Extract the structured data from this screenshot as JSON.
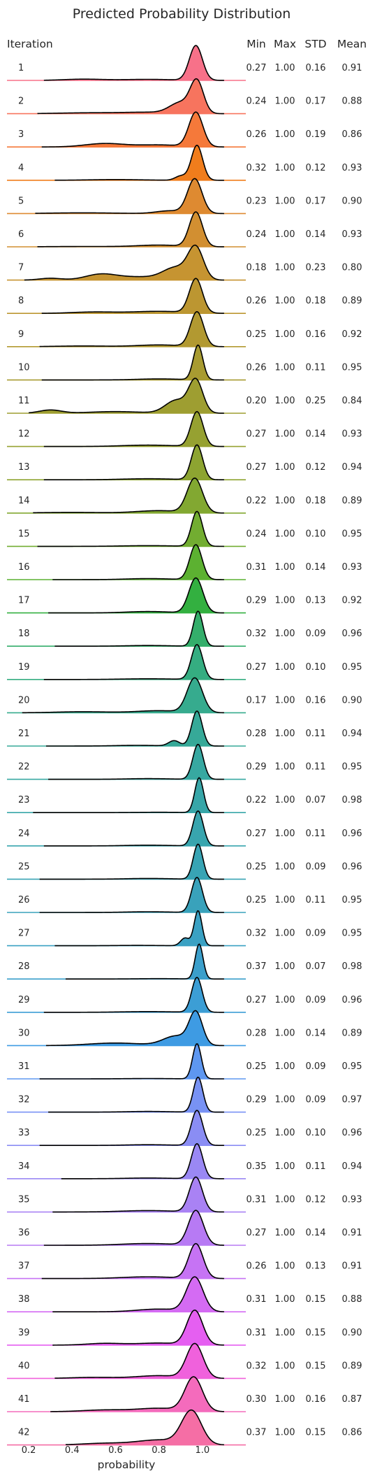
{
  "chart_data": {
    "type": "ridgeline",
    "title": "Predicted Probability Distribution",
    "xlabel": "probability",
    "row_header": "Iteration",
    "stat_headers": [
      "Min",
      "Max",
      "STD",
      "Mean"
    ],
    "xlim": [
      0.1,
      1.2
    ],
    "xticks": [
      0.2,
      0.4,
      0.6,
      0.8,
      1.0
    ],
    "xtick_labels": [
      "0.2",
      "0.4",
      "0.6",
      "0.8",
      "1.0"
    ],
    "grid": false,
    "colors": [
      "#f77189",
      "#f7745e",
      "#f5793a",
      "#f07d1c",
      "#de8a31",
      "#d28f31",
      "#c69431",
      "#bc9631",
      "#b29931",
      "#a89b31",
      "#9e9e31",
      "#96a131",
      "#8da431",
      "#82a831",
      "#72ad31",
      "#5cb131",
      "#33b040",
      "#34ae6b",
      "#35ad81",
      "#36ab8e",
      "#36a998",
      "#37a8a1",
      "#37a6a8",
      "#38a5ae",
      "#38a4b4",
      "#39a2bb",
      "#3aa1c3",
      "#3b9fcb",
      "#3c9ed5",
      "#3e9be3",
      "#5e97f0",
      "#7892f4",
      "#8a8df4",
      "#9a88f4",
      "#a982f4",
      "#b77af4",
      "#c673f4",
      "#d46bf3",
      "#e55ff1",
      "#f061dc",
      "#f46bbc",
      "#f56ea5"
    ],
    "iterations": [
      {
        "label": "1",
        "min": "0.27",
        "max": "1.00",
        "std": "0.16",
        "mean": "0.91",
        "components": [
          [
            0.97,
            0.03,
            1.0
          ],
          [
            0.45,
            0.09,
            0.035
          ],
          [
            0.75,
            0.12,
            0.03
          ]
        ]
      },
      {
        "label": "2",
        "min": "0.24",
        "max": "1.00",
        "std": "0.17",
        "mean": "0.88",
        "components": [
          [
            0.975,
            0.03,
            1.0
          ],
          [
            0.9,
            0.05,
            0.35
          ],
          [
            0.5,
            0.15,
            0.03
          ],
          [
            0.75,
            0.1,
            0.04
          ]
        ]
      },
      {
        "label": "3",
        "min": "0.26",
        "max": "1.00",
        "std": "0.19",
        "mean": "0.86",
        "components": [
          [
            0.97,
            0.032,
            1.0
          ],
          [
            0.55,
            0.09,
            0.1
          ],
          [
            0.8,
            0.1,
            0.06
          ]
        ]
      },
      {
        "label": "4",
        "min": "0.32",
        "max": "1.00",
        "std": "0.12",
        "mean": "0.93",
        "components": [
          [
            0.975,
            0.026,
            1.0
          ],
          [
            0.9,
            0.025,
            0.12
          ],
          [
            0.6,
            0.12,
            0.02
          ]
        ]
      },
      {
        "label": "5",
        "min": "0.23",
        "max": "1.00",
        "std": "0.17",
        "mean": "0.90",
        "components": [
          [
            0.965,
            0.033,
            1.0
          ],
          [
            0.85,
            0.06,
            0.08
          ],
          [
            0.45,
            0.15,
            0.02
          ]
        ]
      },
      {
        "label": "6",
        "min": "0.24",
        "max": "1.00",
        "std": "0.14",
        "mean": "0.93",
        "components": [
          [
            0.97,
            0.03,
            1.0
          ],
          [
            0.8,
            0.1,
            0.05
          ],
          [
            0.45,
            0.15,
            0.01
          ]
        ]
      },
      {
        "label": "7",
        "min": "0.18",
        "max": "1.00",
        "std": "0.23",
        "mean": "0.80",
        "components": [
          [
            0.97,
            0.035,
            1.0
          ],
          [
            0.88,
            0.06,
            0.4
          ],
          [
            0.53,
            0.07,
            0.18
          ],
          [
            0.3,
            0.05,
            0.06
          ],
          [
            0.7,
            0.1,
            0.1
          ]
        ]
      },
      {
        "label": "8",
        "min": "0.26",
        "max": "1.00",
        "std": "0.18",
        "mean": "0.89",
        "components": [
          [
            0.97,
            0.03,
            1.0
          ],
          [
            0.8,
            0.12,
            0.06
          ],
          [
            0.5,
            0.1,
            0.04
          ]
        ]
      },
      {
        "label": "9",
        "min": "0.25",
        "max": "1.00",
        "std": "0.16",
        "mean": "0.92",
        "components": [
          [
            0.975,
            0.03,
            1.0
          ],
          [
            0.8,
            0.1,
            0.05
          ],
          [
            0.45,
            0.12,
            0.02
          ]
        ]
      },
      {
        "label": "10",
        "min": "0.26",
        "max": "1.00",
        "std": "0.11",
        "mean": "0.95",
        "components": [
          [
            0.98,
            0.022,
            1.0
          ],
          [
            0.8,
            0.1,
            0.03
          ]
        ]
      },
      {
        "label": "11",
        "min": "0.20",
        "max": "1.00",
        "std": "0.25",
        "mean": "0.84",
        "components": [
          [
            0.97,
            0.032,
            1.0
          ],
          [
            0.88,
            0.05,
            0.4
          ],
          [
            0.3,
            0.05,
            0.1
          ],
          [
            0.6,
            0.12,
            0.05
          ]
        ]
      },
      {
        "label": "12",
        "min": "0.27",
        "max": "1.00",
        "std": "0.14",
        "mean": "0.93",
        "components": [
          [
            0.975,
            0.028,
            1.0
          ],
          [
            0.75,
            0.12,
            0.04
          ]
        ]
      },
      {
        "label": "13",
        "min": "0.27",
        "max": "1.00",
        "std": "0.12",
        "mean": "0.94",
        "components": [
          [
            0.975,
            0.026,
            1.0
          ],
          [
            0.75,
            0.12,
            0.03
          ]
        ]
      },
      {
        "label": "14",
        "min": "0.22",
        "max": "1.00",
        "std": "0.18",
        "mean": "0.89",
        "components": [
          [
            0.965,
            0.035,
            1.0
          ],
          [
            0.8,
            0.1,
            0.07
          ],
          [
            0.4,
            0.15,
            0.02
          ]
        ]
      },
      {
        "label": "15",
        "min": "0.24",
        "max": "1.00",
        "std": "0.10",
        "mean": "0.95",
        "components": [
          [
            0.975,
            0.025,
            1.0
          ],
          [
            0.75,
            0.12,
            0.02
          ]
        ]
      },
      {
        "label": "16",
        "min": "0.31",
        "max": "1.00",
        "std": "0.14",
        "mean": "0.93",
        "components": [
          [
            0.97,
            0.028,
            1.0
          ],
          [
            0.75,
            0.1,
            0.03
          ]
        ]
      },
      {
        "label": "17",
        "min": "0.29",
        "max": "1.00",
        "std": "0.13",
        "mean": "0.92",
        "components": [
          [
            0.97,
            0.032,
            1.0
          ],
          [
            0.75,
            0.1,
            0.04
          ]
        ]
      },
      {
        "label": "18",
        "min": "0.32",
        "max": "1.00",
        "std": "0.09",
        "mean": "0.96",
        "components": [
          [
            0.98,
            0.022,
            1.0
          ],
          [
            0.75,
            0.1,
            0.02
          ]
        ]
      },
      {
        "label": "19",
        "min": "0.27",
        "max": "1.00",
        "std": "0.10",
        "mean": "0.95",
        "components": [
          [
            0.975,
            0.026,
            1.0
          ],
          [
            0.75,
            0.12,
            0.02
          ]
        ]
      },
      {
        "label": "20",
        "min": "0.17",
        "max": "1.00",
        "std": "0.16",
        "mean": "0.90",
        "components": [
          [
            0.965,
            0.035,
            1.0
          ],
          [
            0.8,
            0.1,
            0.06
          ],
          [
            0.45,
            0.12,
            0.03
          ]
        ]
      },
      {
        "label": "21",
        "min": "0.28",
        "max": "1.00",
        "std": "0.11",
        "mean": "0.94",
        "components": [
          [
            0.975,
            0.024,
            1.0
          ],
          [
            0.87,
            0.025,
            0.15
          ],
          [
            0.7,
            0.1,
            0.02
          ]
        ]
      },
      {
        "label": "22",
        "min": "0.29",
        "max": "1.00",
        "std": "0.11",
        "mean": "0.95",
        "components": [
          [
            0.98,
            0.024,
            1.0
          ],
          [
            0.75,
            0.1,
            0.02
          ]
        ]
      },
      {
        "label": "23",
        "min": "0.22",
        "max": "1.00",
        "std": "0.07",
        "mean": "0.98",
        "components": [
          [
            0.985,
            0.02,
            1.0
          ],
          [
            0.8,
            0.1,
            0.01
          ]
        ]
      },
      {
        "label": "24",
        "min": "0.27",
        "max": "1.00",
        "std": "0.11",
        "mean": "0.96",
        "components": [
          [
            0.98,
            0.024,
            1.0
          ],
          [
            0.75,
            0.1,
            0.02
          ]
        ]
      },
      {
        "label": "25",
        "min": "0.25",
        "max": "1.00",
        "std": "0.09",
        "mean": "0.96",
        "components": [
          [
            0.98,
            0.022,
            1.0
          ],
          [
            0.75,
            0.1,
            0.02
          ]
        ]
      },
      {
        "label": "26",
        "min": "0.25",
        "max": "1.00",
        "std": "0.11",
        "mean": "0.95",
        "components": [
          [
            0.975,
            0.025,
            1.0
          ],
          [
            0.75,
            0.1,
            0.02
          ]
        ]
      },
      {
        "label": "27",
        "min": "0.32",
        "max": "1.00",
        "std": "0.09",
        "mean": "0.95",
        "components": [
          [
            0.98,
            0.018,
            1.0
          ],
          [
            0.92,
            0.02,
            0.22
          ],
          [
            0.7,
            0.1,
            0.01
          ]
        ]
      },
      {
        "label": "28",
        "min": "0.37",
        "max": "1.00",
        "std": "0.07",
        "mean": "0.98",
        "components": [
          [
            0.985,
            0.018,
            1.0
          ],
          [
            0.8,
            0.1,
            0.01
          ]
        ]
      },
      {
        "label": "29",
        "min": "0.27",
        "max": "1.00",
        "std": "0.09",
        "mean": "0.96",
        "components": [
          [
            0.975,
            0.024,
            1.0
          ],
          [
            0.75,
            0.12,
            0.02
          ]
        ]
      },
      {
        "label": "30",
        "min": "0.28",
        "max": "1.00",
        "std": "0.14",
        "mean": "0.89",
        "components": [
          [
            0.97,
            0.03,
            1.0
          ],
          [
            0.88,
            0.06,
            0.3
          ],
          [
            0.6,
            0.12,
            0.08
          ]
        ]
      },
      {
        "label": "31",
        "min": "0.25",
        "max": "1.00",
        "std": "0.09",
        "mean": "0.95",
        "components": [
          [
            0.975,
            0.02,
            1.0
          ],
          [
            0.75,
            0.1,
            0.01
          ]
        ]
      },
      {
        "label": "32",
        "min": "0.29",
        "max": "1.00",
        "std": "0.09",
        "mean": "0.97",
        "components": [
          [
            0.98,
            0.022,
            1.0
          ],
          [
            0.75,
            0.1,
            0.02
          ]
        ]
      },
      {
        "label": "33",
        "min": "0.25",
        "max": "1.00",
        "std": "0.10",
        "mean": "0.96",
        "components": [
          [
            0.975,
            0.026,
            1.0
          ],
          [
            0.75,
            0.1,
            0.02
          ]
        ]
      },
      {
        "label": "34",
        "min": "0.35",
        "max": "1.00",
        "std": "0.11",
        "mean": "0.94",
        "components": [
          [
            0.975,
            0.026,
            1.0
          ],
          [
            0.75,
            0.1,
            0.02
          ]
        ]
      },
      {
        "label": "35",
        "min": "0.31",
        "max": "1.00",
        "std": "0.12",
        "mean": "0.93",
        "components": [
          [
            0.97,
            0.03,
            1.0
          ],
          [
            0.75,
            0.12,
            0.04
          ]
        ]
      },
      {
        "label": "36",
        "min": "0.27",
        "max": "1.00",
        "std": "0.14",
        "mean": "0.91",
        "components": [
          [
            0.97,
            0.034,
            1.0
          ],
          [
            0.75,
            0.12,
            0.05
          ]
        ]
      },
      {
        "label": "37",
        "min": "0.26",
        "max": "1.00",
        "std": "0.13",
        "mean": "0.91",
        "components": [
          [
            0.97,
            0.033,
            1.0
          ],
          [
            0.75,
            0.12,
            0.05
          ]
        ]
      },
      {
        "label": "38",
        "min": "0.31",
        "max": "1.00",
        "std": "0.15",
        "mean": "0.88",
        "components": [
          [
            0.965,
            0.038,
            1.0
          ],
          [
            0.8,
            0.1,
            0.08
          ]
        ]
      },
      {
        "label": "39",
        "min": "0.31",
        "max": "1.00",
        "std": "0.15",
        "mean": "0.90",
        "components": [
          [
            0.965,
            0.036,
            1.0
          ],
          [
            0.55,
            0.08,
            0.05
          ],
          [
            0.8,
            0.1,
            0.06
          ]
        ]
      },
      {
        "label": "40",
        "min": "0.32",
        "max": "1.00",
        "std": "0.15",
        "mean": "0.89",
        "components": [
          [
            0.965,
            0.038,
            1.0
          ],
          [
            0.8,
            0.1,
            0.08
          ],
          [
            0.5,
            0.1,
            0.03
          ]
        ]
      },
      {
        "label": "41",
        "min": "0.30",
        "max": "1.00",
        "std": "0.16",
        "mean": "0.87",
        "components": [
          [
            0.96,
            0.04,
            1.0
          ],
          [
            0.8,
            0.1,
            0.1
          ],
          [
            0.55,
            0.1,
            0.05
          ]
        ]
      },
      {
        "label": "42",
        "min": "0.37",
        "max": "1.00",
        "std": "0.15",
        "mean": "0.86",
        "components": [
          [
            0.95,
            0.045,
            1.0
          ],
          [
            0.8,
            0.1,
            0.15
          ],
          [
            0.55,
            0.1,
            0.05
          ]
        ]
      }
    ]
  }
}
